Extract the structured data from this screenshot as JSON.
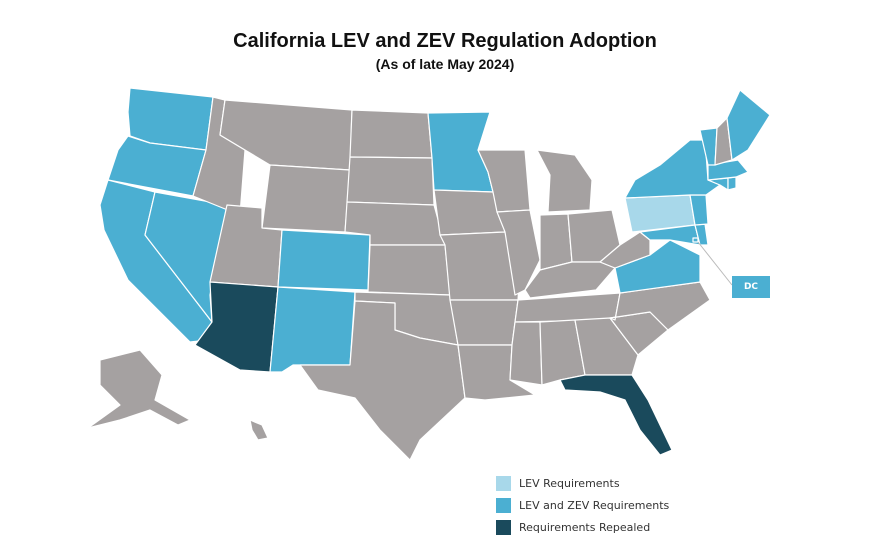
{
  "title": "California LEV and ZEV Regulation Adoption",
  "subtitle": "(As of late May 2024)",
  "colors": {
    "lev": "#a8d8ea",
    "lev_zev": "#4bafd2",
    "repealed": "#1a4a5c",
    "none": "#a5a1a1",
    "border": "#ffffff"
  },
  "legend": {
    "lev": "LEV Requirements",
    "lev_zev": "LEV and ZEV Requirements",
    "repealed": "Requirements Repealed"
  },
  "dc_label": "DC",
  "states": {
    "lev": [
      "PA"
    ],
    "lev_zev": [
      "WA",
      "OR",
      "CA",
      "NV",
      "CO",
      "NM",
      "MN",
      "NY",
      "VT",
      "ME",
      "MA",
      "CT",
      "RI",
      "NJ",
      "DE",
      "MD",
      "VA",
      "DC"
    ],
    "repealed": [
      "AZ",
      "FL"
    ]
  }
}
